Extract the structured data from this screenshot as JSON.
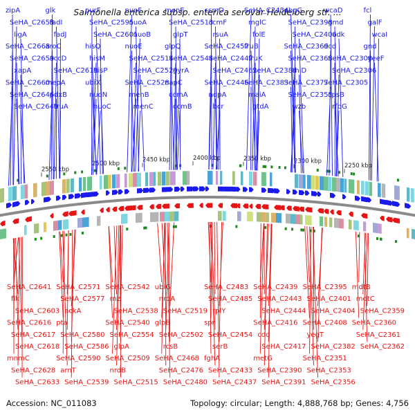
{
  "title": "Salmonella enterica subsp. enterica serovar Heidelberg str. ...",
  "accession": "Accession: NC_011083",
  "summary": "Topology: circular; Length: 4,888,768 bp; Genes: 4,756",
  "colors": {
    "forward": "#1a1aee",
    "reverse": "#e61414",
    "backbone": "#8a8a8a",
    "rna": "#1f8a1f",
    "cog": [
      "#7fd6e0",
      "#a8c47a",
      "#d9b26b",
      "#c79bd6",
      "#5fb8c8",
      "#e0c95a",
      "#9fa8d6",
      "#6fc38a",
      "#d68fa3",
      "#b5b5b5",
      "#4aa3d6",
      "#cfe07f"
    ]
  },
  "kbp_ticks": [
    "2550 kbp",
    "2500 kbp",
    "2450 kbp",
    "2400 kbp",
    "2350 kbp",
    "2300 kbp",
    "2250 kbp"
  ],
  "forward_genes": [
    "zipA",
    "SeHA_C2658",
    "ligA",
    "SeHA_C2668",
    "SeHA_C2659",
    "xapA",
    "SeHA_C2660",
    "SeHA_C2646",
    "SeHA_C2649",
    "glk",
    "fadI",
    "fadJ",
    "aroC",
    "accD",
    "SeHA_C2619",
    "mepA",
    "pdxB",
    "truA",
    "purF",
    "SeHA_C2595",
    "SeHA_C2601",
    "hisQ",
    "hisM",
    "hisP",
    "ubiX",
    "nuoN",
    "nuoC",
    "nuoF",
    "nuoA",
    "nuoB",
    "nuoE",
    "SeHA_C2514",
    "SeHA_C2529",
    "SeHA_C2528",
    "menB",
    "menC",
    "menE",
    "SeHA_C2513",
    "glpT",
    "glpQ",
    "SeHA_C2544",
    "gyrA",
    "napC",
    "ccmA",
    "ccmB",
    "ccmD",
    "ccmF",
    "rsuA",
    "SeHA_C2457",
    "SeHA_C2447",
    "SeHA_C2462",
    "SeHA_C2446",
    "ndpA",
    "bcr",
    "SeHA_C2434",
    "mglC",
    "folE",
    "fruB",
    "fruK",
    "SeHA_C2384",
    "SeHA_C2383",
    "maiA",
    "gtdA",
    "pbgG",
    "SeHA_C2398",
    "SeHA_C2406",
    "SeHA_C2369",
    "SeHA_C2368",
    "thiD",
    "SeHA_C2377",
    "SeHA_C2355",
    "wzb",
    "wcaD",
    "gmd",
    "udk",
    "dcd",
    "SeHA_C2308",
    "SeHA_C2306",
    "SeHA_C2305",
    "cpsB",
    "rfbG",
    "fcl",
    "galF",
    "wcaI",
    "gnd",
    "yeeF"
  ],
  "reverse_genes": [
    "SeHA_C2641",
    "flk",
    "SeHA_C2603",
    "SeHA_C2616",
    "SeHA_C2617",
    "SeHA_C2618",
    "mnmC",
    "SeHA_C2628",
    "SeHA_C2633",
    "SeHA_C2571",
    "SeHA_C2577",
    "ackA",
    "pta",
    "SeHA_C2580",
    "SeHA_C2586",
    "SeHA_C2590",
    "arnT",
    "SeHA_C2539",
    "SeHA_C2542",
    "rnz",
    "SeHA_C2538",
    "SeHA_C2540",
    "SeHA_C2554",
    "glpA",
    "SeHA_C2509",
    "nrdB",
    "SeHA_C2515",
    "ubiG",
    "nrdA",
    "SeHA_C2519",
    "glpB",
    "SeHA_C2502",
    "rcsB",
    "SeHA_C2468",
    "SeHA_C2476",
    "SeHA_C2480",
    "SeHA_C2483",
    "SeHA_C2485",
    "rplY",
    "spr",
    "SeHA_C2454",
    "serB",
    "fghA",
    "SeHA_C2433",
    "SeHA_C2437",
    "SeHA_C2439",
    "SeHA_C2443",
    "SeHA_C2444",
    "SeHA_C2416",
    "cdd",
    "SeHA_C2417",
    "metG",
    "SeHA_C2390",
    "SeHA_C2391",
    "SeHA_C2395",
    "SeHA_C2401",
    "SeHA_C2404",
    "SeHA_C2408",
    "yegT",
    "SeHA_C2382",
    "SeHA_C2351",
    "SeHA_C2353",
    "SeHA_C2356",
    "mdtB",
    "mdtC",
    "SeHA_C2359",
    "SeHA_C2360",
    "SeHA_C2361",
    "SeHA_C2362"
  ]
}
